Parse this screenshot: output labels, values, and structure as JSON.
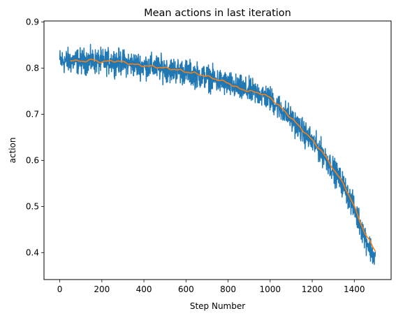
{
  "chart_data": {
    "type": "line",
    "title": "Mean actions in last iteration",
    "xlabel": "Step Number",
    "ylabel": "action",
    "xlim": [
      -75,
      1575
    ],
    "ylim": [
      0.342,
      0.902
    ],
    "xticks": [
      0,
      200,
      400,
      600,
      800,
      1000,
      1200,
      1400
    ],
    "yticks": [
      0.4,
      0.5,
      0.6,
      0.7,
      0.8,
      0.9
    ],
    "grid": false,
    "legend": "none",
    "series": [
      {
        "role": "raw",
        "color": "#1f77b4",
        "noise_amplitude": 0.03,
        "x": [
          0,
          50,
          100,
          150,
          200,
          250,
          300,
          350,
          400,
          450,
          500,
          550,
          600,
          650,
          700,
          750,
          800,
          850,
          900,
          950,
          1000,
          1050,
          1100,
          1150,
          1200,
          1250,
          1300,
          1350,
          1400,
          1450,
          1500
        ],
        "y": [
          0.815,
          0.815,
          0.815,
          0.815,
          0.813,
          0.815,
          0.812,
          0.808,
          0.805,
          0.802,
          0.798,
          0.795,
          0.791,
          0.785,
          0.78,
          0.772,
          0.765,
          0.756,
          0.75,
          0.745,
          0.733,
          0.712,
          0.69,
          0.665,
          0.64,
          0.615,
          0.58,
          0.545,
          0.495,
          0.435,
          0.385
        ]
      },
      {
        "role": "smoothed",
        "color": "#ff7f0e",
        "x": [
          50,
          100,
          150,
          200,
          250,
          300,
          350,
          400,
          450,
          500,
          550,
          600,
          650,
          700,
          750,
          800,
          850,
          900,
          950,
          1000,
          1050,
          1100,
          1150,
          1200,
          1250,
          1300,
          1350,
          1400,
          1450,
          1500
        ],
        "y": [
          0.818,
          0.814,
          0.818,
          0.813,
          0.816,
          0.813,
          0.808,
          0.805,
          0.803,
          0.8,
          0.797,
          0.792,
          0.788,
          0.782,
          0.775,
          0.768,
          0.756,
          0.75,
          0.746,
          0.736,
          0.715,
          0.692,
          0.668,
          0.644,
          0.617,
          0.582,
          0.548,
          0.5,
          0.442,
          0.405
        ]
      }
    ]
  }
}
